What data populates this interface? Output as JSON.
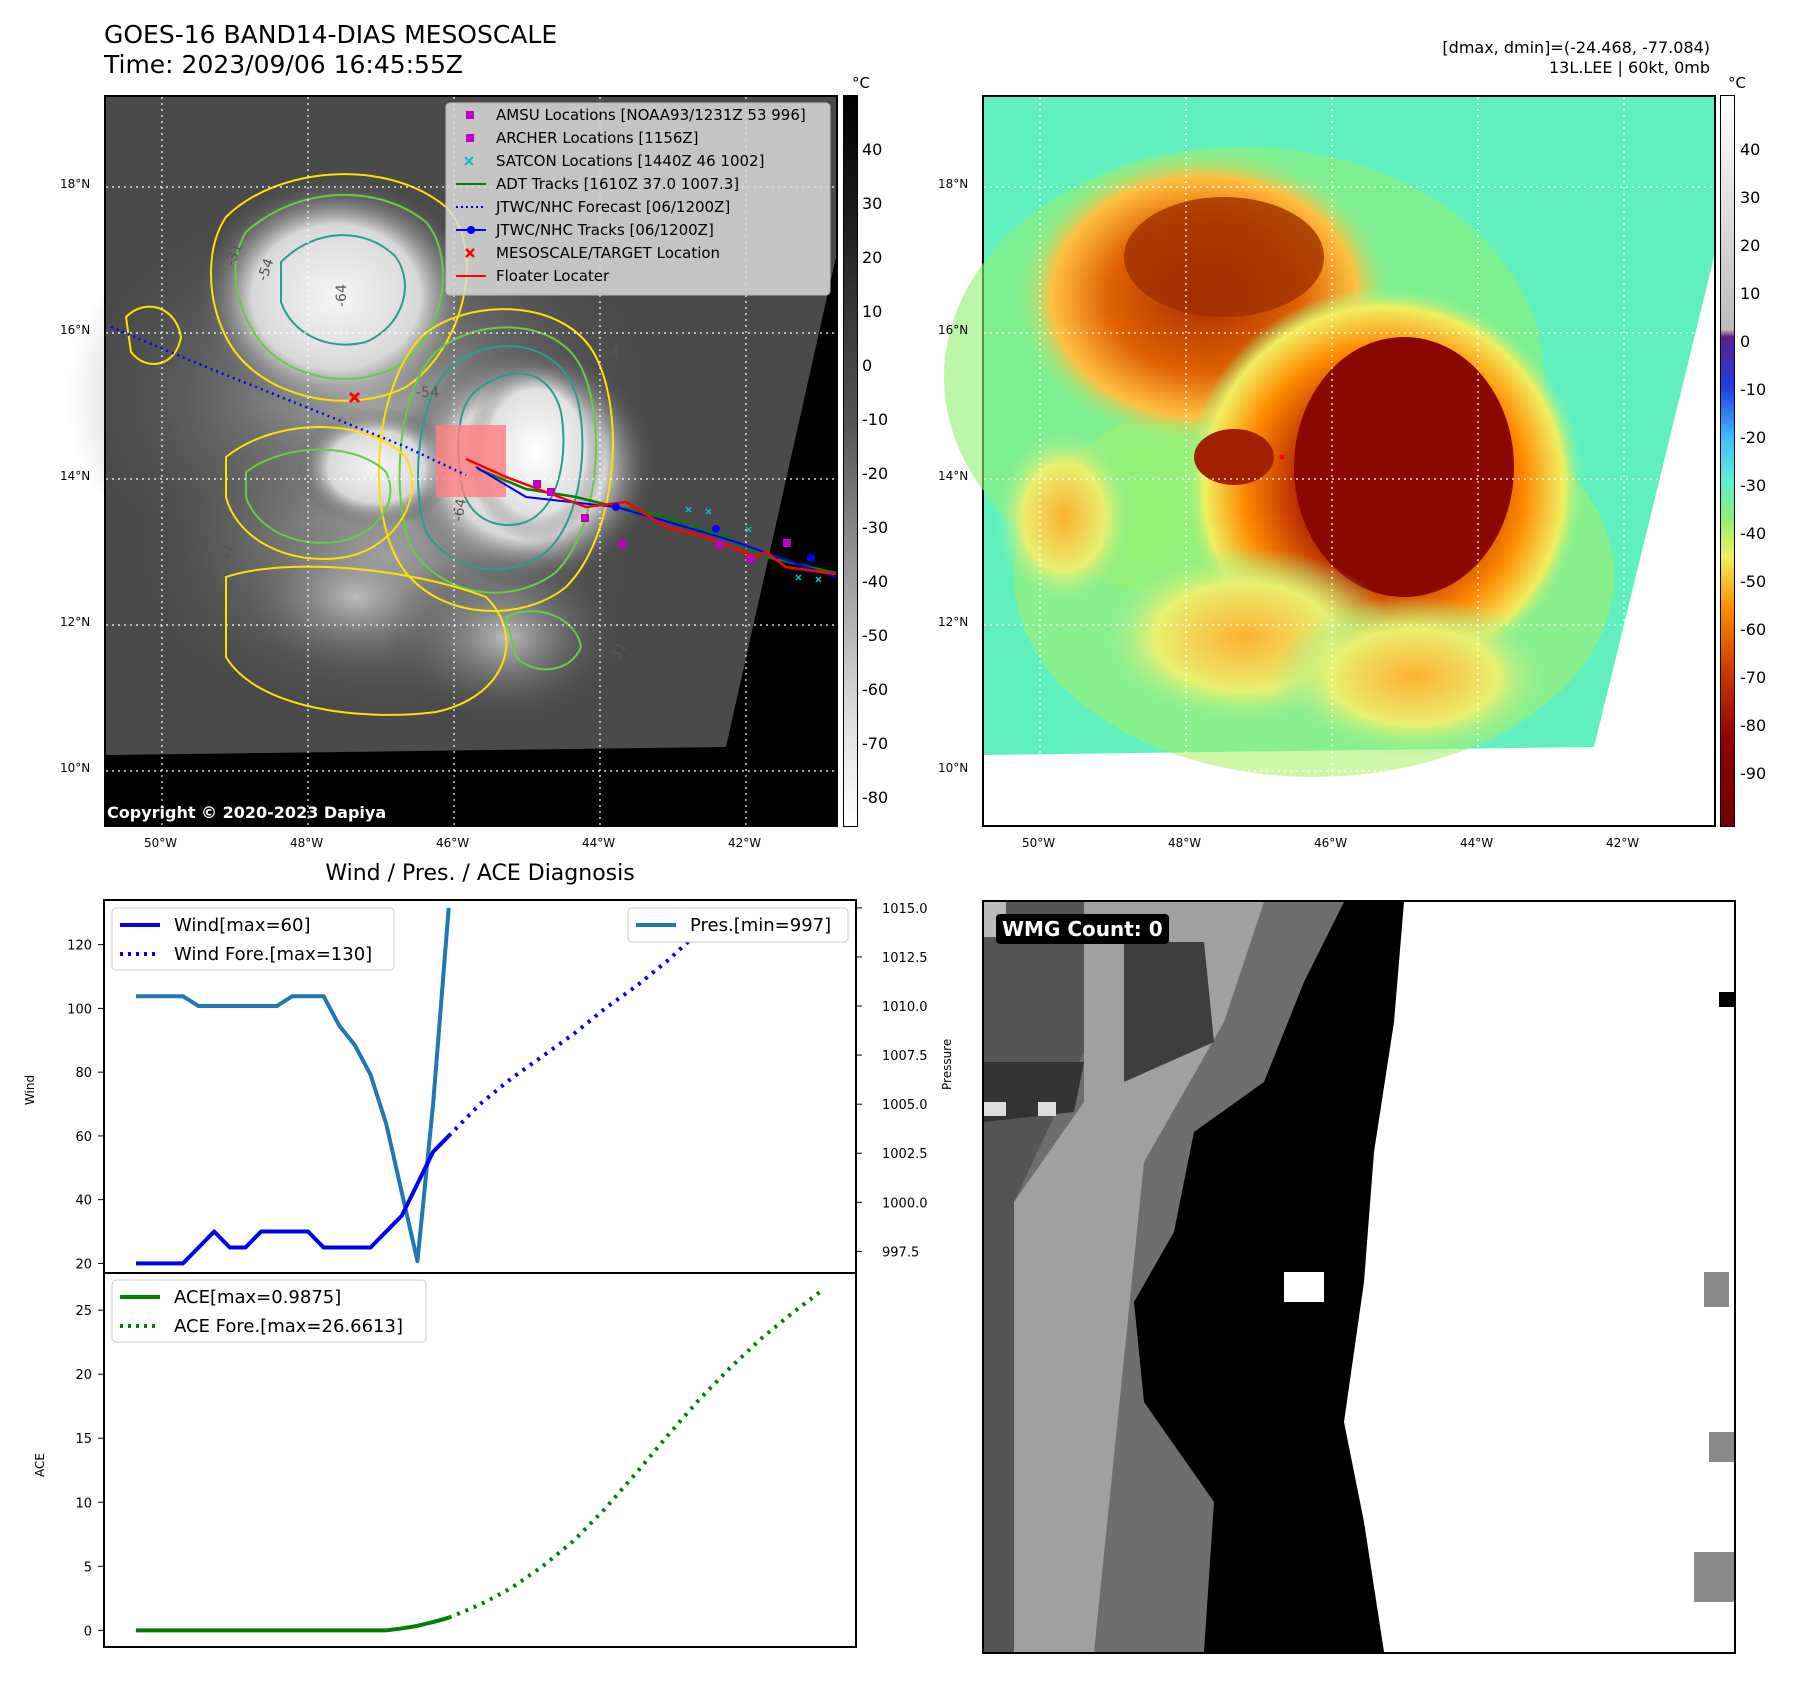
{
  "header": {
    "title_line1": "GOES-16 BAND14-DIAS MESOSCALE",
    "title_line2": "Time: 2023/09/06 16:45:55Z",
    "stats_line1": "[dmax, dmin]=(-24.468, -77.084)",
    "stats_line2": "13L.LEE | 60kt, 0mb"
  },
  "map": {
    "lat_labels": [
      "18°N",
      "16°N",
      "14°N",
      "12°N",
      "10°N"
    ],
    "lon_labels": [
      "50°W",
      "48°W",
      "46°W",
      "44°W",
      "42°W"
    ],
    "copyright": "Copyright © 2020-2023 Dapiya",
    "contour_labels": [
      "-31",
      "-54",
      "-64",
      "-64",
      "-31",
      "-54",
      "-64",
      "-31"
    ],
    "legend": [
      {
        "label": "AMSU Locations [NOAA93/1231Z 53 996]",
        "marker": "square",
        "color": "#c000c0"
      },
      {
        "label": "ARCHER Locations [1156Z]",
        "marker": "square",
        "color": "#c000c0"
      },
      {
        "label": "SATCON Locations [1440Z 46 1002]",
        "marker": "x",
        "color": "#00bfbf"
      },
      {
        "label": "ADT Tracks [1610Z 37.0 1007.3]",
        "marker": "line",
        "color": "#008000"
      },
      {
        "label": "JTWC/NHC Forecast [06/1200Z]",
        "marker": "dotted",
        "color": "#0000ff"
      },
      {
        "label": "JTWC/NHC Tracks [06/1200Z]",
        "marker": "line-dot",
        "color": "#0000ff"
      },
      {
        "label": "MESOSCALE/TARGET Location",
        "marker": "x",
        "color": "#ff0000"
      },
      {
        "label": "Floater Locater",
        "marker": "line",
        "color": "#ff0000"
      }
    ],
    "colors": {
      "contour_yellow": "#ffe000",
      "contour_green": "#66cc44",
      "contour_teal": "#2a9d8f",
      "target_red": "#ff0000"
    }
  },
  "colorbar_gray": {
    "unit": "°C",
    "ticks": [
      40,
      30,
      20,
      10,
      0,
      -10,
      -20,
      -30,
      -40,
      -50,
      -60,
      -70,
      -80
    ]
  },
  "colorbar_color": {
    "unit": "°C",
    "ticks": [
      40,
      30,
      20,
      10,
      0,
      -10,
      -20,
      -30,
      -40,
      -50,
      -60,
      -70,
      -80,
      -90
    ]
  },
  "chart_data": [
    {
      "type": "line",
      "title": "Wind / Pres. / ACE Diagnosis",
      "ylabel": "Wind",
      "y2label": "Pressure",
      "ylim": [
        17,
        134
      ],
      "y2lim": [
        996.4,
        1015.4
      ],
      "yticks": [
        20,
        40,
        60,
        80,
        100,
        120
      ],
      "y2ticks": [
        "1015.0",
        "1012.5",
        "1010.0",
        "1007.5",
        "1005.0",
        "1002.5",
        "1000.0",
        "997.5"
      ],
      "series": [
        {
          "name": "Wind[max=60]",
          "style": "solid",
          "color": "#0000ee",
          "axis": "left",
          "x": [
            0,
            1,
            2,
            3,
            4,
            5,
            6,
            7,
            8,
            9,
            10,
            11,
            12,
            13,
            14,
            15,
            16,
            17,
            18,
            19,
            20
          ],
          "values": [
            20,
            20,
            20,
            20,
            25,
            30,
            25,
            25,
            30,
            30,
            30,
            30,
            25,
            25,
            25,
            25,
            30,
            35,
            45,
            55,
            60
          ]
        },
        {
          "name": "Wind Fore.[max=130]",
          "style": "dotted",
          "color": "#0000ee",
          "axis": "left",
          "x": [
            20,
            22,
            24,
            26,
            28,
            30,
            32,
            34,
            36,
            38,
            40,
            42,
            44
          ],
          "values": [
            60,
            70,
            78,
            85,
            92,
            100,
            107,
            115,
            124,
            130,
            130,
            130,
            130
          ]
        },
        {
          "name": "Pres.[min=997]",
          "style": "solid",
          "color": "#1f77b4",
          "axis": "right",
          "x": [
            0,
            2,
            3,
            4,
            5,
            6,
            7,
            8,
            9,
            10,
            11,
            12,
            13,
            14,
            15,
            16,
            17,
            18,
            19,
            20
          ],
          "values": [
            1010.5,
            1010.5,
            1010.5,
            1010,
            1010,
            1010,
            1010,
            1010,
            1010,
            1010.5,
            1010.5,
            1010.5,
            1009,
            1008,
            1006.5,
            1004,
            1000.5,
            997,
            1005,
            1015
          ]
        }
      ]
    },
    {
      "type": "line",
      "ylabel": "ACE",
      "ylim": [
        -1.3,
        27.9
      ],
      "yticks": [
        0,
        5,
        10,
        15,
        20,
        25
      ],
      "series": [
        {
          "name": "ACE[max=0.9875]",
          "style": "solid",
          "color": "#008000",
          "x": [
            0,
            4,
            8,
            12,
            16,
            17,
            18,
            19,
            20
          ],
          "values": [
            0,
            0,
            0,
            0,
            0,
            0.15,
            0.35,
            0.65,
            0.99
          ]
        },
        {
          "name": "ACE Fore.[max=26.6613]",
          "style": "dotted",
          "color": "#008000",
          "x": [
            20,
            22,
            24,
            26,
            28,
            30,
            32,
            34,
            36,
            38,
            40,
            42,
            44
          ],
          "values": [
            0.99,
            2.0,
            3.3,
            5.0,
            7.0,
            9.5,
            12.3,
            15.2,
            18.0,
            20.5,
            22.8,
            24.8,
            26.66
          ]
        }
      ]
    }
  ],
  "wmg": {
    "label": "WMG Count: 0"
  }
}
